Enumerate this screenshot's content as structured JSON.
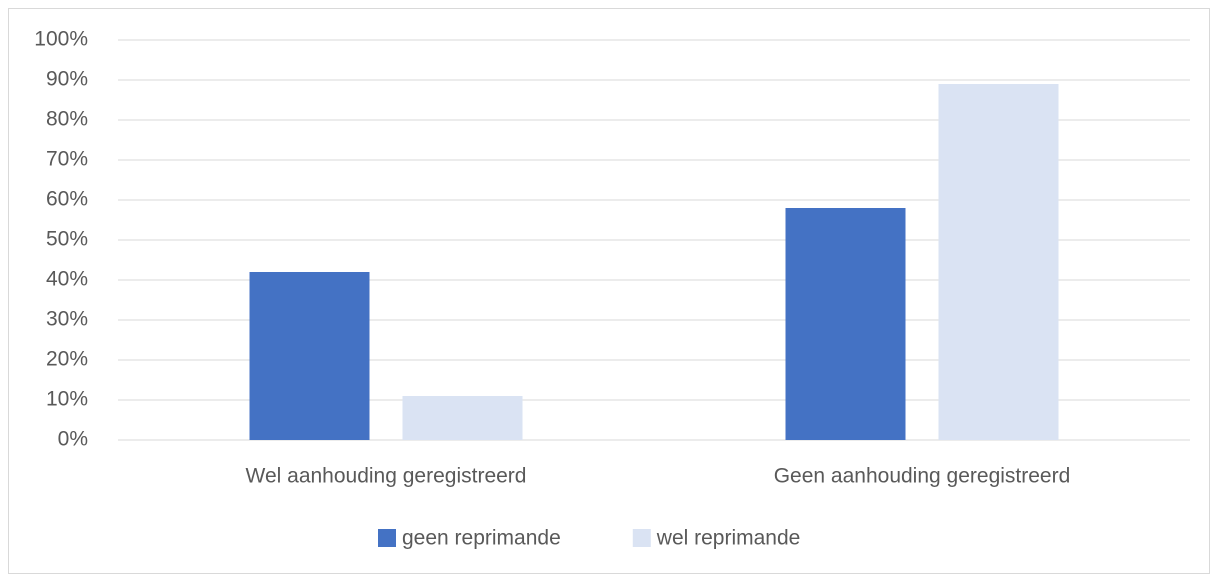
{
  "chart_data": {
    "type": "bar",
    "categories": [
      "Wel aanhouding geregistreerd",
      "Geen aanhouding geregistreerd"
    ],
    "series": [
      {
        "name": "geen reprimande",
        "color": "#4472c4",
        "values": [
          42,
          58
        ]
      },
      {
        "name": "wel reprimande",
        "color": "#dae3f3",
        "values": [
          11,
          89
        ]
      }
    ],
    "ylim": [
      0,
      100
    ],
    "yticks": [
      {
        "value": 0,
        "label": "0%"
      },
      {
        "value": 10,
        "label": "10%"
      },
      {
        "value": 20,
        "label": "20%"
      },
      {
        "value": 30,
        "label": "30%"
      },
      {
        "value": 40,
        "label": "40%"
      },
      {
        "value": 50,
        "label": "50%"
      },
      {
        "value": 60,
        "label": "60%"
      },
      {
        "value": 70,
        "label": "70%"
      },
      {
        "value": 80,
        "label": "80%"
      },
      {
        "value": 90,
        "label": "90%"
      },
      {
        "value": 100,
        "label": "100%"
      }
    ],
    "grid": true,
    "legend": "bottom"
  }
}
